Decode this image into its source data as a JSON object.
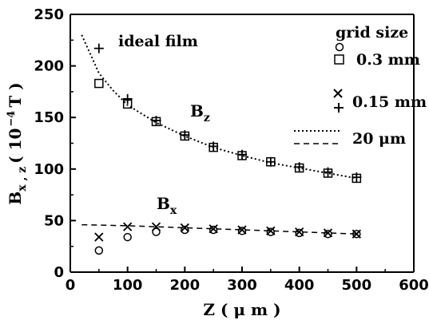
{
  "chart_data": {
    "type": "scatter",
    "title": "",
    "xlabel": "Z ( μ m )",
    "ylabel_main": "B",
    "ylabel_sub": "x , z",
    "ylabel_rest": "( 10",
    "ylabel_exp": "−4",
    "ylabel_unit": "T )",
    "xlim": [
      0,
      600
    ],
    "ylim": [
      0,
      250
    ],
    "xticks": [
      0,
      100,
      200,
      300,
      400,
      500,
      600
    ],
    "yticks": [
      0,
      50,
      100,
      150,
      200,
      250
    ],
    "grid": false,
    "annotations": {
      "ideal_film": "ideal film",
      "bz_main": "B",
      "bz_sub": "z",
      "bx_main": "B",
      "bx_sub": "x"
    },
    "legend": {
      "title": "grid size",
      "entry_03": "0.3 mm",
      "entry_015": "0.15 mm",
      "entry_20um": "20 μm"
    },
    "series": [
      {
        "grid": "0.3 mm",
        "component": "Bz",
        "marker": "square",
        "x": [
          50,
          100,
          150,
          200,
          250,
          300,
          350,
          400,
          450,
          500
        ],
        "y": [
          183,
          163,
          146,
          132,
          121,
          113,
          107,
          101,
          96,
          91
        ]
      },
      {
        "grid": "0.15 mm",
        "component": "Bz",
        "marker": "plus",
        "x": [
          50,
          100,
          150,
          200,
          250,
          300,
          350,
          400,
          450,
          500
        ],
        "y": [
          217,
          168,
          147,
          133,
          122,
          114,
          107,
          102,
          97,
          92
        ]
      },
      {
        "grid": "0.3 mm",
        "component": "Bx",
        "marker": "circle",
        "x": [
          50,
          100,
          150,
          200,
          250,
          300,
          350,
          400,
          450,
          500
        ],
        "y": [
          21,
          34,
          39,
          41,
          41,
          40,
          39,
          38,
          37,
          37
        ]
      },
      {
        "grid": "0.15 mm",
        "component": "Bx",
        "marker": "cross",
        "x": [
          50,
          100,
          150,
          200,
          250,
          300,
          350,
          400,
          450,
          500
        ],
        "y": [
          34,
          44,
          44,
          43,
          42,
          41,
          40,
          39,
          38,
          37
        ]
      }
    ],
    "lines": [
      {
        "grid": "20 μm",
        "component": "Bz",
        "style": "dotted",
        "x": [
          20,
          50,
          75,
          100,
          150,
          200,
          250,
          300,
          350,
          400,
          450,
          500
        ],
        "y": [
          230,
          193,
          176,
          162,
          145,
          132,
          121,
          113,
          106,
          101,
          96,
          91
        ]
      },
      {
        "grid": "20 μm",
        "component": "Bx",
        "style": "dashed",
        "x": [
          20,
          100,
          200,
          300,
          400,
          500
        ],
        "y": [
          46,
          45,
          43,
          41,
          39,
          37
        ]
      }
    ]
  }
}
